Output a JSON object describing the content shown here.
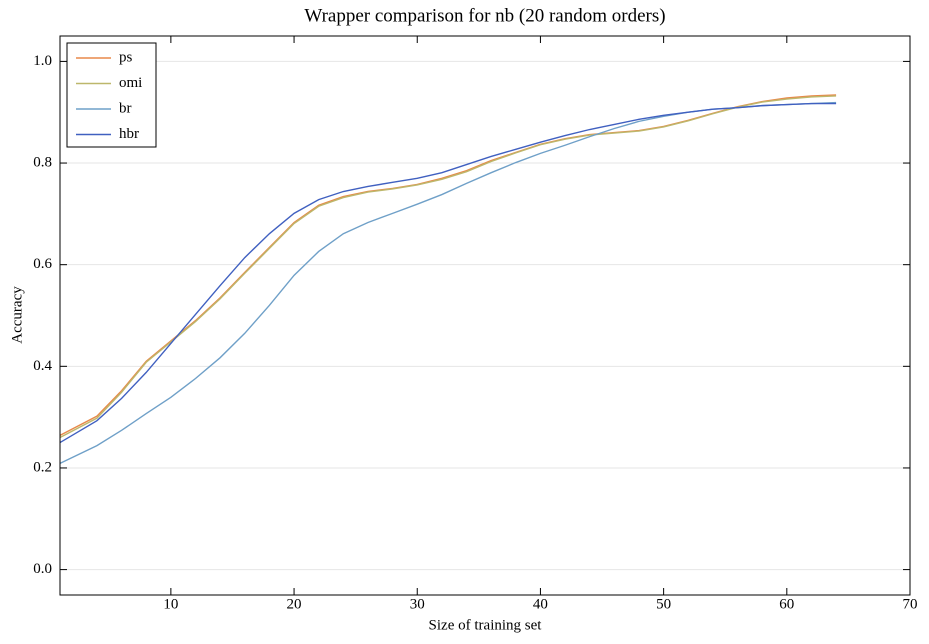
{
  "chart_data": {
    "type": "line",
    "title": "Wrapper comparison for nb (20 random orders)",
    "xlabel": "Size of training set",
    "ylabel": "Accuracy",
    "x": [
      1,
      4,
      6,
      8,
      10,
      12,
      14,
      16,
      18,
      20,
      22,
      24,
      26,
      28,
      30,
      32,
      34,
      36,
      38,
      40,
      42,
      44,
      46,
      48,
      50,
      52,
      54,
      56,
      58,
      60,
      62,
      64
    ],
    "series": [
      {
        "name": "ps",
        "color": "#e8894a",
        "values": [
          0.264,
          0.302,
          0.352,
          0.41,
          0.45,
          0.49,
          0.535,
          0.585,
          0.634,
          0.683,
          0.717,
          0.734,
          0.744,
          0.75,
          0.758,
          0.77,
          0.785,
          0.805,
          0.821,
          0.837,
          0.848,
          0.856,
          0.86,
          0.864,
          0.872,
          0.884,
          0.898,
          0.911,
          0.921,
          0.928,
          0.932,
          0.934
        ]
      },
      {
        "name": "omi",
        "color": "#bdb76b",
        "values": [
          0.26,
          0.298,
          0.349,
          0.408,
          0.448,
          0.488,
          0.533,
          0.583,
          0.632,
          0.681,
          0.715,
          0.732,
          0.743,
          0.749,
          0.757,
          0.768,
          0.783,
          0.803,
          0.82,
          0.836,
          0.847,
          0.855,
          0.859,
          0.863,
          0.871,
          0.883,
          0.897,
          0.91,
          0.92,
          0.926,
          0.93,
          0.932
        ]
      },
      {
        "name": "br",
        "color": "#6fa0c8",
        "values": [
          0.209,
          0.244,
          0.274,
          0.307,
          0.339,
          0.376,
          0.417,
          0.465,
          0.52,
          0.579,
          0.626,
          0.661,
          0.683,
          0.701,
          0.719,
          0.738,
          0.76,
          0.781,
          0.801,
          0.819,
          0.835,
          0.852,
          0.868,
          0.882,
          0.892,
          0.9,
          0.906,
          0.909,
          0.913,
          0.915,
          0.917,
          0.919
        ]
      },
      {
        "name": "hbr",
        "color": "#4060c0",
        "values": [
          0.25,
          0.293,
          0.337,
          0.388,
          0.445,
          0.502,
          0.559,
          0.614,
          0.661,
          0.701,
          0.728,
          0.744,
          0.754,
          0.762,
          0.77,
          0.781,
          0.797,
          0.813,
          0.827,
          0.841,
          0.854,
          0.866,
          0.876,
          0.886,
          0.894,
          0.9,
          0.906,
          0.909,
          0.913,
          0.915,
          0.917,
          0.917
        ]
      }
    ],
    "xlim": [
      1,
      70
    ],
    "xticks": [
      10,
      20,
      30,
      40,
      50,
      60,
      70
    ],
    "ylim": [
      -0.05,
      1.05
    ],
    "yticks": [
      {
        "value": 0,
        "label": "0.0"
      },
      0.2,
      0.4,
      0.6,
      0.8,
      {
        "value": 1,
        "label": "1.0"
      }
    ],
    "grid": "y",
    "legend": "upper left"
  }
}
